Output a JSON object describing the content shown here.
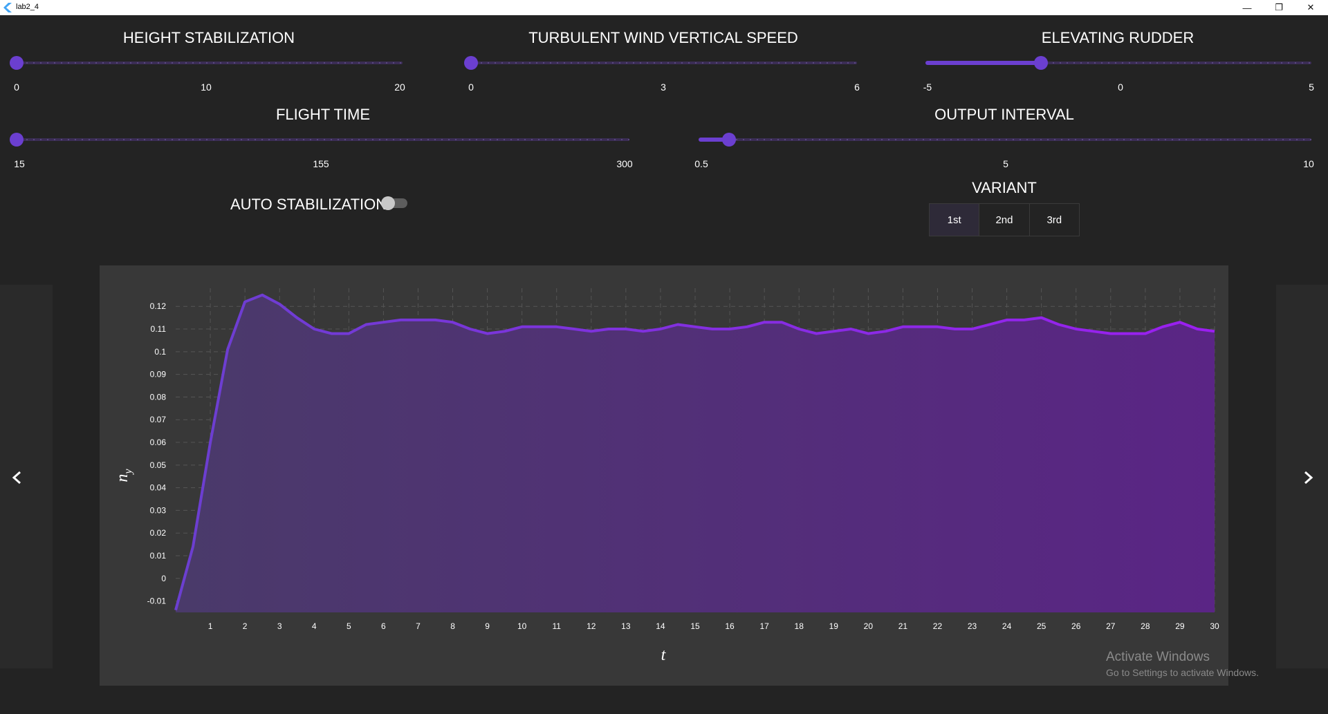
{
  "window": {
    "title": "lab2_4",
    "controls": {
      "minimize": "—",
      "maximize": "❐",
      "close": "✕"
    }
  },
  "sliders": [
    {
      "id": "height",
      "label": "HEIGHT STABILIZATION",
      "min_label": "0",
      "mid_label": "10",
      "max_label": "20",
      "value_fraction": 0.0,
      "fill": false
    },
    {
      "id": "wind",
      "label": "TURBULENT WIND VERTICAL SPEED",
      "min_label": "0",
      "mid_label": "3",
      "max_label": "6",
      "value_fraction": 0.0,
      "fill": false
    },
    {
      "id": "rudder",
      "label": "ELEVATING RUDDER",
      "min_label": "-5",
      "mid_label": "0",
      "max_label": "5",
      "value_fraction": 0.3,
      "fill": true
    },
    {
      "id": "flight",
      "label": "FLIGHT TIME",
      "min_label": "15",
      "mid_label": "155",
      "max_label": "300",
      "value_fraction": 0.0,
      "fill": false
    },
    {
      "id": "interval",
      "label": "OUTPUT INTERVAL",
      "min_label": "0.5",
      "mid_label": "5",
      "max_label": "10",
      "value_fraction": 0.05,
      "fill": true
    }
  ],
  "auto_stabilization": {
    "label": "AUTO STABILIZATION",
    "on": false
  },
  "variant": {
    "label": "VARIANT",
    "options": [
      "1st",
      "2nd",
      "3rd"
    ],
    "selected_index": 0
  },
  "watermark": {
    "title": "Activate Windows",
    "subtitle": "Go to Settings to activate Windows."
  },
  "icons": {
    "prev": "chevron-left-icon",
    "next": "chevron-right-icon"
  },
  "colors": {
    "accent": "#6b3fd0",
    "line": "#8a22e6",
    "area_top": "#5a2f8e",
    "area_bottom": "#4a2a7a"
  },
  "chart_data": {
    "type": "area",
    "xlabel": "t",
    "ylabel": "n_y",
    "ylim": [
      -0.015,
      0.128
    ],
    "xlim": [
      0,
      30
    ],
    "grid": true,
    "x_ticks": [
      "1",
      "2",
      "3",
      "4",
      "5",
      "6",
      "7",
      "8",
      "9",
      "10",
      "11",
      "12",
      "13",
      "14",
      "15",
      "16",
      "17",
      "18",
      "19",
      "20",
      "21",
      "22",
      "23",
      "24",
      "25",
      "26",
      "27",
      "28",
      "29",
      "30"
    ],
    "y_ticks": [
      "-0.01",
      "0",
      "0.01",
      "0.02",
      "0.03",
      "0.04",
      "0.05",
      "0.06",
      "0.07",
      "0.08",
      "0.09",
      "0.1",
      "0.11",
      "0.12"
    ],
    "x": [
      0,
      0.5,
      1,
      1.5,
      2,
      2.5,
      3,
      3.5,
      4,
      4.5,
      5,
      5.5,
      6,
      6.5,
      7,
      7.5,
      8,
      8.5,
      9,
      9.5,
      10,
      10.5,
      11,
      11.5,
      12,
      12.5,
      13,
      13.5,
      14,
      14.5,
      15,
      15.5,
      16,
      16.5,
      17,
      17.5,
      18,
      18.5,
      19,
      19.5,
      20,
      20.5,
      21,
      21.5,
      22,
      22.5,
      23,
      23.5,
      24,
      24.5,
      25,
      25.5,
      26,
      26.5,
      27,
      27.5,
      28,
      28.5,
      29,
      29.5,
      30
    ],
    "y": [
      -0.014,
      0.014,
      0.06,
      0.101,
      0.122,
      0.125,
      0.121,
      0.115,
      0.11,
      0.108,
      0.108,
      0.112,
      0.113,
      0.114,
      0.114,
      0.114,
      0.113,
      0.11,
      0.108,
      0.109,
      0.111,
      0.111,
      0.111,
      0.11,
      0.109,
      0.11,
      0.11,
      0.109,
      0.11,
      0.112,
      0.111,
      0.11,
      0.11,
      0.111,
      0.113,
      0.113,
      0.11,
      0.108,
      0.109,
      0.11,
      0.108,
      0.109,
      0.111,
      0.111,
      0.111,
      0.11,
      0.11,
      0.112,
      0.114,
      0.114,
      0.115,
      0.112,
      0.11,
      0.109,
      0.108,
      0.108,
      0.108,
      0.111,
      0.113,
      0.11,
      0.109
    ]
  }
}
